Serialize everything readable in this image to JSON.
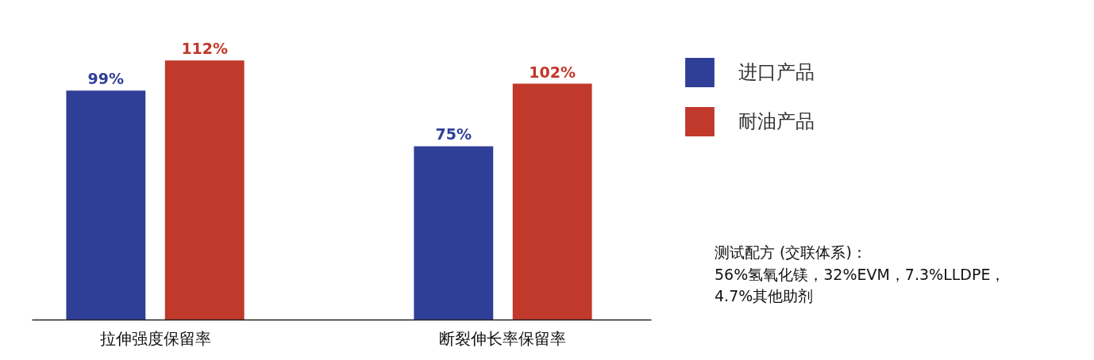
{
  "chart_data": {
    "type": "bar",
    "categories": [
      "拉伸强度保留率",
      "断裂伸长率保留率"
    ],
    "series": [
      {
        "name": "进口产品",
        "color": "#2f3f98",
        "values": [
          99,
          75
        ],
        "value_labels": [
          "99%",
          "75%"
        ]
      },
      {
        "name": "耐油产品",
        "color": "#c0392b",
        "values": [
          112,
          102
        ],
        "value_labels": [
          "112%",
          "102%"
        ]
      }
    ],
    "data_labels": true,
    "legend": "top right",
    "grid": false,
    "annotations": [
      "测试配方 (交联体系)：\n56%氢氧化镁，32%EVM，7.3%LLDPE，\n4.7%其他助剂"
    ]
  }
}
